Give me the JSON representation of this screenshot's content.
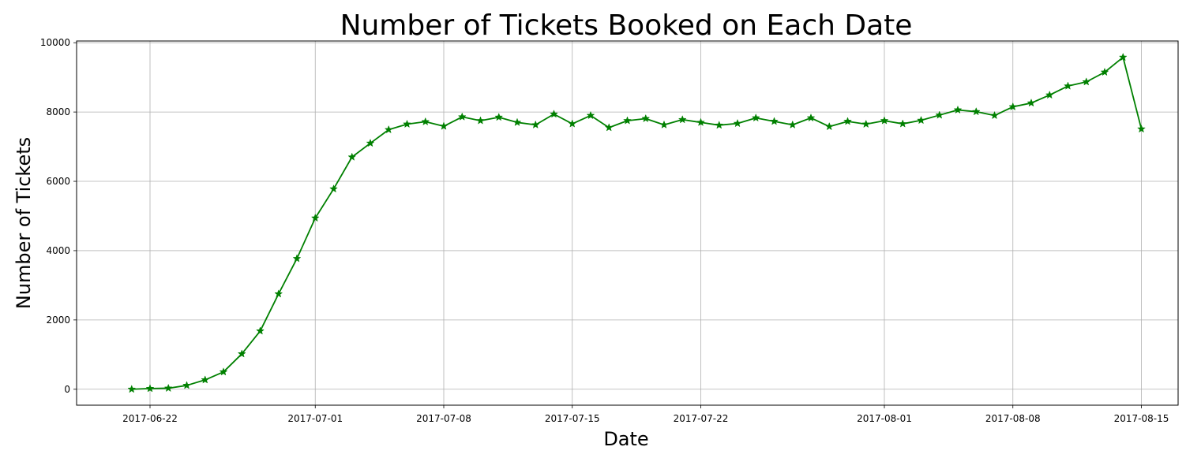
{
  "chart_data": {
    "type": "line",
    "title": "Number of Tickets Booked on Each Date",
    "xlabel": "Date",
    "ylabel": "Number of Tickets",
    "grid": true,
    "xlim": [
      "2017-06-18",
      "2017-08-17"
    ],
    "ylim": [
      -460,
      10050
    ],
    "x_ticks": [
      "2017-06-22",
      "2017-07-01",
      "2017-07-08",
      "2017-07-15",
      "2017-07-22",
      "2017-08-01",
      "2017-08-08",
      "2017-08-15"
    ],
    "y_ticks": [
      0,
      2000,
      4000,
      6000,
      8000,
      10000
    ],
    "line_color": "#008000",
    "marker": "star",
    "series": [
      {
        "x": [
          "2017-06-21",
          "2017-06-22",
          "2017-06-23",
          "2017-06-24",
          "2017-06-25",
          "2017-06-26",
          "2017-06-27",
          "2017-06-28",
          "2017-06-29",
          "2017-06-30",
          "2017-07-01",
          "2017-07-02",
          "2017-07-03",
          "2017-07-04",
          "2017-07-05",
          "2017-07-06",
          "2017-07-07",
          "2017-07-08",
          "2017-07-09",
          "2017-07-10",
          "2017-07-11",
          "2017-07-12",
          "2017-07-13",
          "2017-07-14",
          "2017-07-15",
          "2017-07-16",
          "2017-07-17",
          "2017-07-18",
          "2017-07-19",
          "2017-07-20",
          "2017-07-21",
          "2017-07-22",
          "2017-07-23",
          "2017-07-24",
          "2017-07-25",
          "2017-07-26",
          "2017-07-27",
          "2017-07-28",
          "2017-07-29",
          "2017-07-30",
          "2017-07-31",
          "2017-08-01",
          "2017-08-02",
          "2017-08-03",
          "2017-08-04",
          "2017-08-05",
          "2017-08-06",
          "2017-08-07",
          "2017-08-08",
          "2017-08-09",
          "2017-08-10",
          "2017-08-11",
          "2017-08-12",
          "2017-08-13",
          "2017-08-14",
          "2017-08-15"
        ],
        "values": [
          0,
          20,
          30,
          110,
          270,
          500,
          1020,
          1680,
          2750,
          3770,
          4940,
          5780,
          6700,
          7100,
          7490,
          7650,
          7720,
          7590,
          7860,
          7750,
          7850,
          7700,
          7630,
          7940,
          7660,
          7900,
          7550,
          7750,
          7810,
          7630,
          7780,
          7700,
          7620,
          7670,
          7830,
          7730,
          7630,
          7830,
          7580,
          7730,
          7650,
          7750,
          7660,
          7760,
          7910,
          8060,
          8010,
          7900,
          8150,
          8260,
          8490,
          8750,
          8870,
          9150,
          9580,
          7510
        ]
      }
    ]
  }
}
